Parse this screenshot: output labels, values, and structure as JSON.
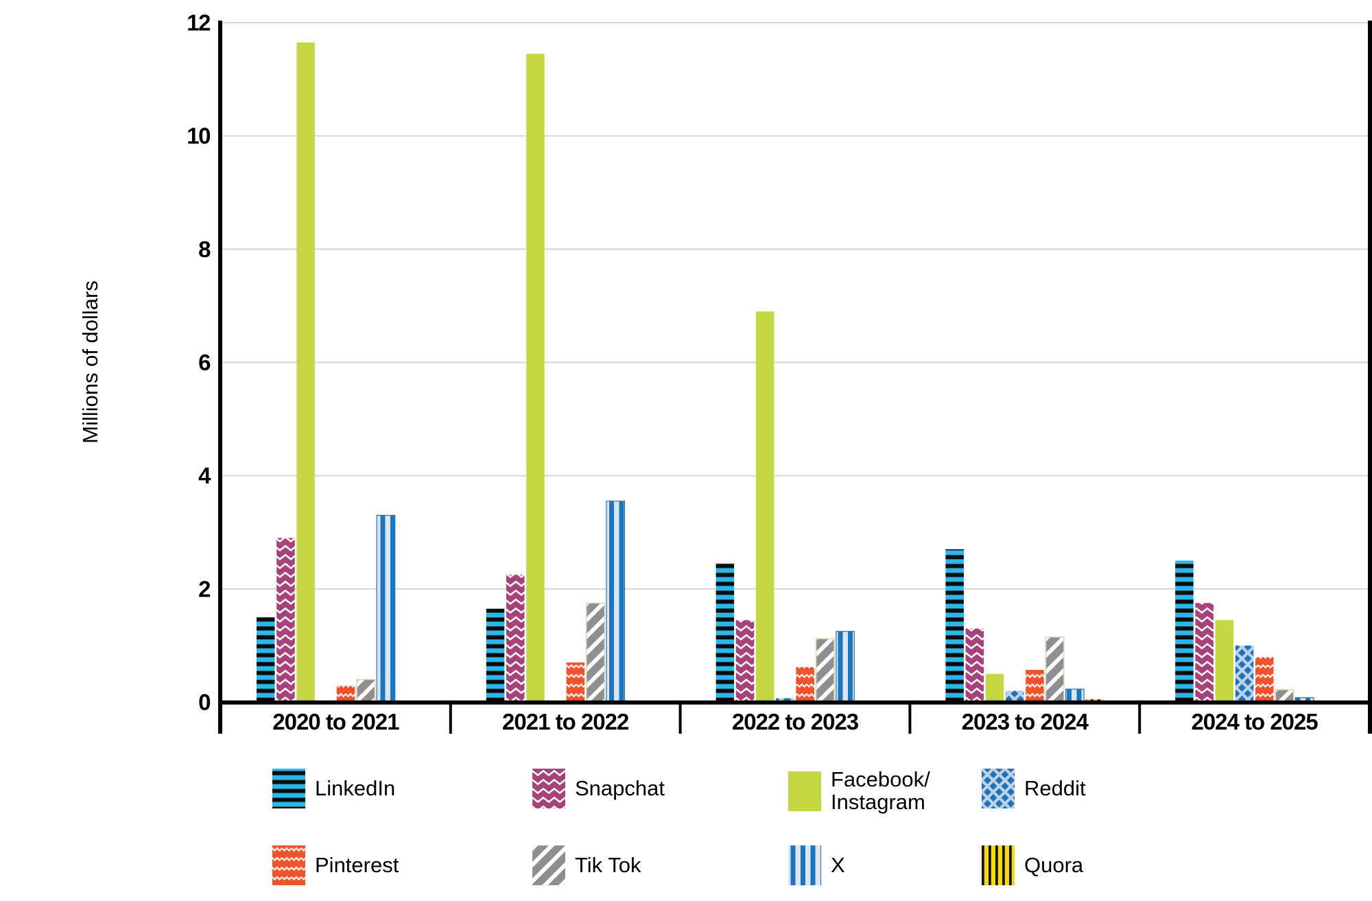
{
  "chart_data": {
    "type": "bar",
    "title": "",
    "ylabel": "Millions of dollars",
    "ylim": [
      0,
      12
    ],
    "ytick_step": 2,
    "yticks": [
      "0",
      "2",
      "4",
      "6",
      "8",
      "10",
      "12"
    ],
    "grid": "horizontal-gray-lines",
    "legend_position": "bottom-two-rows",
    "categories": [
      "2020 to 2021",
      "2021 to 2022",
      "2022 to 2023",
      "2023 to 2024",
      "2024 to 2025"
    ],
    "series": [
      {
        "name": "LinkedIn",
        "pattern": "horizontal-stripes",
        "base_color": "#2cb5e8",
        "stripe_color": "#0c0c0c",
        "values": [
          1.5,
          1.65,
          2.45,
          2.7,
          2.5
        ]
      },
      {
        "name": "Snapchat",
        "pattern": "chevron-zigzag",
        "base_color": "#a6437a",
        "stripe_color": "#ffffff",
        "values": [
          2.9,
          2.25,
          1.45,
          1.3,
          1.75
        ]
      },
      {
        "name": "Facebook/Instagram",
        "legend_lines": [
          "Facebook/",
          "Instagram"
        ],
        "pattern": "solid",
        "base_color": "#c4d843",
        "stripe_color": "",
        "values": [
          11.65,
          11.45,
          6.9,
          0.5,
          1.45
        ]
      },
      {
        "name": "Reddit",
        "pattern": "diamond-crosshatch",
        "base_color": "#2072ba",
        "stripe_color": "#bcd2e8",
        "values": [
          0,
          0,
          0.07,
          0.2,
          1.0
        ]
      },
      {
        "name": "Pinterest",
        "pattern": "wavy-lines",
        "base_color": "#f0512e",
        "stripe_color": "#fbeadb",
        "values": [
          0.3,
          0.7,
          0.62,
          0.57,
          0.8
        ]
      },
      {
        "name": "Tik Tok",
        "pattern": "diagonal-stripes",
        "base_color": "#8f8f91",
        "stripe_color": "#ffffff",
        "values": [
          0.4,
          1.75,
          1.12,
          1.15,
          0.22
        ]
      },
      {
        "name": "X",
        "pattern": "vertical-stripes",
        "base_color": "#dce6f3",
        "stripe_color": "#1d76bd",
        "values": [
          3.3,
          3.55,
          1.25,
          0.23,
          0.08
        ]
      },
      {
        "name": "Quora",
        "pattern": "vertical-stripes-fine",
        "base_color": "#f8d90e",
        "stripe_color": "#141414",
        "values": [
          0,
          0,
          0,
          0.05,
          0
        ]
      }
    ]
  }
}
